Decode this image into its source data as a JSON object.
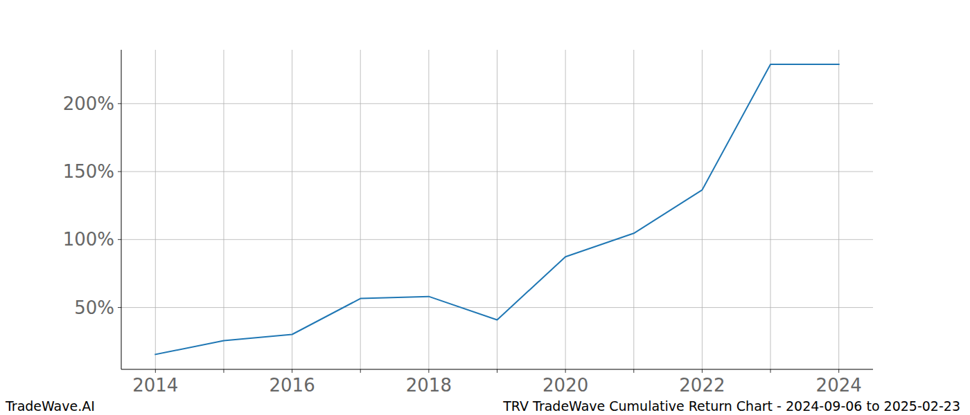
{
  "chart_data": {
    "type": "line",
    "title": "TRV TradeWave Cumulative Return Chart - 2024-09-06 to 2025-02-23",
    "credit": "TradeWave.AI",
    "x": [
      2014,
      2015,
      2016,
      2017,
      2018,
      2019,
      2020,
      2021,
      2022,
      2023,
      2024
    ],
    "series": [
      {
        "name": "TRV",
        "color": "#1f77b4",
        "values": [
          15.5,
          25.6,
          30.2,
          56.6,
          58.1,
          40.9,
          87.3,
          104.6,
          136.5,
          228.9,
          228.9
        ]
      }
    ],
    "xlim": [
      2013.5,
      2024.5
    ],
    "ylim": [
      4.5,
      239.6
    ],
    "xticks": [
      2014,
      {
        "value": 2015,
        "label": null
      },
      2016,
      {
        "value": 2017,
        "label": null
      },
      2018,
      {
        "value": 2019,
        "label": null
      },
      2020,
      {
        "value": 2021,
        "label": null
      },
      2022,
      {
        "value": 2023,
        "label": null
      },
      2024
    ],
    "yticks": [
      {
        "value": 50,
        "label": "50%"
      },
      {
        "value": 100,
        "label": "100%"
      },
      {
        "value": 150,
        "label": "150%"
      },
      {
        "value": 200,
        "label": "200%"
      }
    ],
    "grid": true
  }
}
